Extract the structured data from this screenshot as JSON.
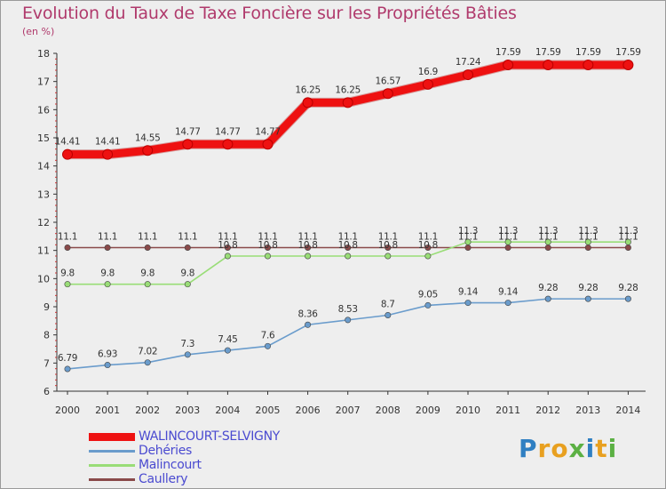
{
  "title": "Evolution du Taux de Taxe Foncière sur les Propriétés Bâties",
  "subtitle": "(en %)",
  "brand": {
    "letters": [
      {
        "ch": "P",
        "color": "#2f7fc2"
      },
      {
        "ch": "r",
        "color": "#e8a020"
      },
      {
        "ch": "o",
        "color": "#e8a020"
      },
      {
        "ch": "x",
        "color": "#5bb043"
      },
      {
        "ch": "i",
        "color": "#2f7fc2"
      },
      {
        "ch": "t",
        "color": "#e8a020"
      },
      {
        "ch": "i",
        "color": "#5bb043"
      }
    ]
  },
  "chart_data": {
    "type": "line",
    "title": "Evolution du Taux de Taxe Foncière sur les Propriétés Bâties",
    "ylabel": "(en %)",
    "xlabel": "",
    "x": [
      "2000",
      "2001",
      "2002",
      "2003",
      "2004",
      "2005",
      "2006",
      "2007",
      "2008",
      "2009",
      "2010",
      "2011",
      "2012",
      "2013",
      "2014"
    ],
    "ylim": [
      6,
      18
    ],
    "yticks": [
      6,
      7,
      8,
      9,
      10,
      11,
      12,
      13,
      14,
      15,
      16,
      17,
      18
    ],
    "grid": false,
    "legend_position": "bottom-left",
    "series": [
      {
        "name": "WALINCOURT-SELVIGNY",
        "color": "#ee1111",
        "emphasis": true,
        "values": [
          14.41,
          14.41,
          14.55,
          14.77,
          14.77,
          14.77,
          16.25,
          16.25,
          16.57,
          16.9,
          17.24,
          17.59,
          17.59,
          17.59,
          17.59
        ],
        "labels": [
          "14.41",
          "14.41",
          "14.55",
          "14.77",
          "14.77",
          "14.77",
          "16.25",
          "16.25",
          "16.57",
          "16.9",
          "17.24",
          "17.59",
          "17.59",
          "17.59",
          "17.59"
        ]
      },
      {
        "name": "Dehéries",
        "color": "#6a9ccc",
        "emphasis": false,
        "values": [
          6.79,
          6.93,
          7.02,
          7.3,
          7.45,
          7.6,
          8.36,
          8.53,
          8.7,
          9.05,
          9.14,
          9.14,
          9.28,
          9.28,
          9.28
        ],
        "labels": [
          "6.79",
          "6.93",
          "7.02",
          "7.3",
          "7.45",
          "7.6",
          "8.36",
          "8.53",
          "8.7",
          "9.05",
          "9.14",
          "9.14",
          "9.28",
          "9.28",
          "9.28"
        ]
      },
      {
        "name": "Malincourt",
        "color": "#99dd77",
        "emphasis": false,
        "values": [
          9.8,
          9.8,
          9.8,
          9.8,
          10.8,
          10.8,
          10.8,
          10.8,
          10.8,
          10.8,
          11.3,
          11.3,
          11.3,
          11.3,
          11.3
        ],
        "labels": [
          "9.8",
          "9.8",
          "9.8",
          "9.8",
          "10.8",
          "10.8",
          "10.8",
          "10.8",
          "10.8",
          "10.8",
          "11.3",
          "11.3",
          "11.3",
          "11.3",
          "11.3"
        ]
      },
      {
        "name": "Caullery",
        "color": "#8a4a4a",
        "emphasis": false,
        "values": [
          11.1,
          11.1,
          11.1,
          11.1,
          11.1,
          11.1,
          11.1,
          11.1,
          11.1,
          11.1,
          11.1,
          11.1,
          11.1,
          11.1,
          11.1
        ],
        "labels": [
          "11.1",
          "11.1",
          "11.1",
          "11.1",
          "11.1",
          "11.1",
          "11.1",
          "11.1",
          "11.1",
          "11.1",
          "11.1",
          "11.1",
          "11.1",
          "11.1",
          "11.1"
        ]
      }
    ]
  }
}
